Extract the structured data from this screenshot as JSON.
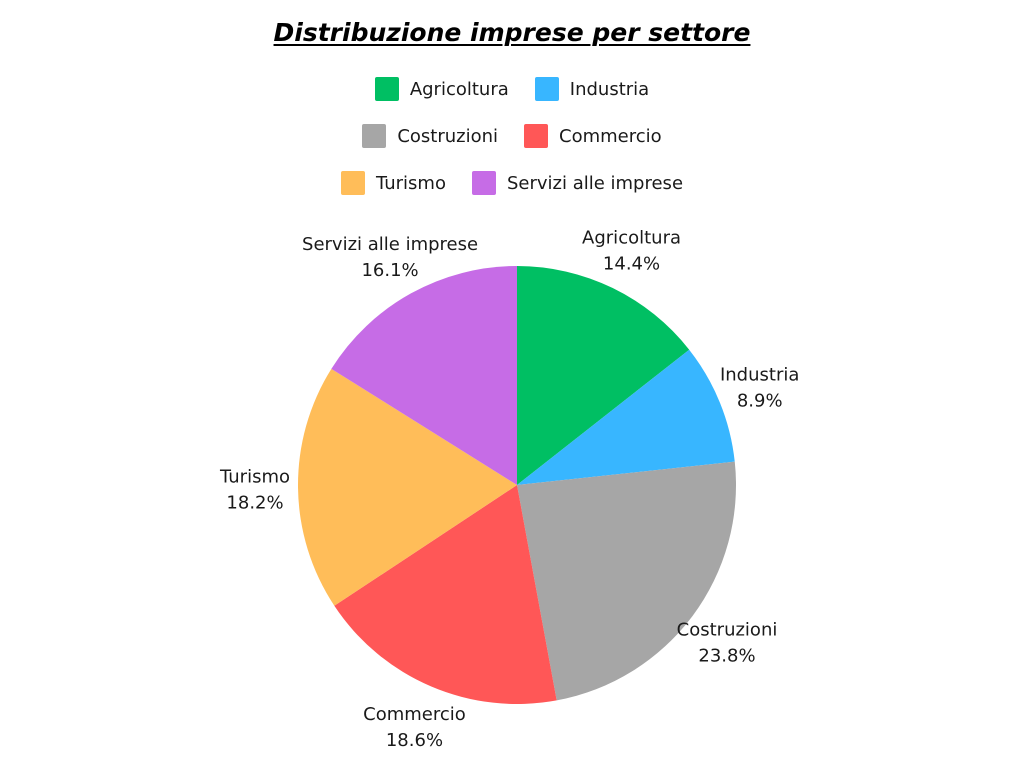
{
  "chart_data": {
    "type": "pie",
    "title": "Distribuzione imprese per settore",
    "categories": [
      "Agricoltura",
      "Industria",
      "Costruzioni",
      "Commercio",
      "Turismo",
      "Servizi alle imprese"
    ],
    "values": [
      14.4,
      8.9,
      23.8,
      18.6,
      18.2,
      16.1
    ],
    "value_labels": [
      "14.4%",
      "8.9%",
      "23.8%",
      "18.6%",
      "18.2%",
      "16.1%"
    ],
    "colors": [
      "#00bf63",
      "#38b6ff",
      "#a6a6a6",
      "#ff5757",
      "#ffbd59",
      "#c66ce6"
    ],
    "legend_position": "top",
    "start_angle": "12 o'clock, clockwise"
  },
  "legend": {
    "rows": [
      [
        0,
        1
      ],
      [
        2,
        3
      ],
      [
        4,
        5
      ]
    ]
  }
}
